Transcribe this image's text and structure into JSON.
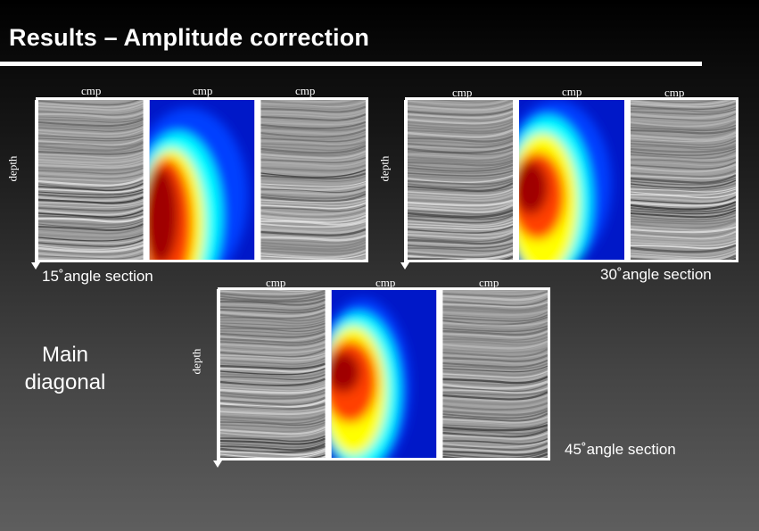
{
  "slide": {
    "title": "Results – Amplitude correction",
    "main_label_line1": "Main",
    "main_label_line2": "diagonal"
  },
  "axis_labels": {
    "cmp": "cmp",
    "depth": "depth"
  },
  "sections": [
    {
      "id": "s15",
      "caption": "15˚angle section"
    },
    {
      "id": "s30",
      "caption": "30˚angle section"
    },
    {
      "id": "s45",
      "caption": "45˚angle section"
    }
  ],
  "colors": {
    "background_top": "#000000",
    "background_bottom": "#5e5e5e",
    "colormap": [
      "#00008f",
      "#0040ff",
      "#00ffff",
      "#ffff00",
      "#ff4000",
      "#a00000"
    ]
  }
}
